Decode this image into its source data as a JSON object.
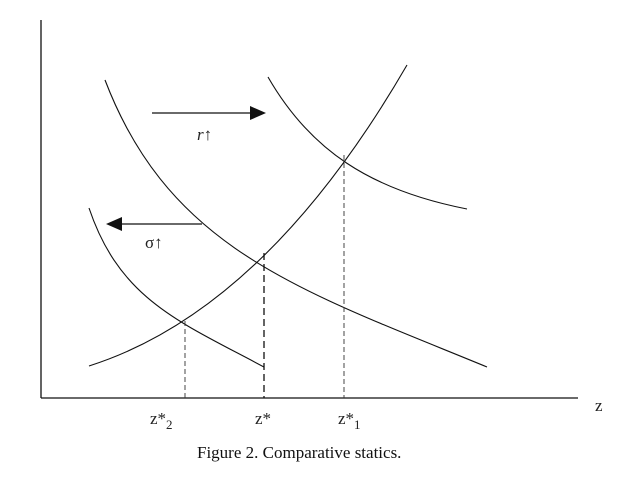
{
  "axes": {
    "x_label": "z"
  },
  "labels": {
    "shift_right": "r↑",
    "shift_left": "σ↑"
  },
  "ticks": {
    "z_star_2": "z*",
    "z_star_2_sub": "2",
    "z_star": "z*",
    "z_star_1": "z*",
    "z_star_1_sub": "1"
  },
  "caption": "Figure 2.  Comparative statics."
}
